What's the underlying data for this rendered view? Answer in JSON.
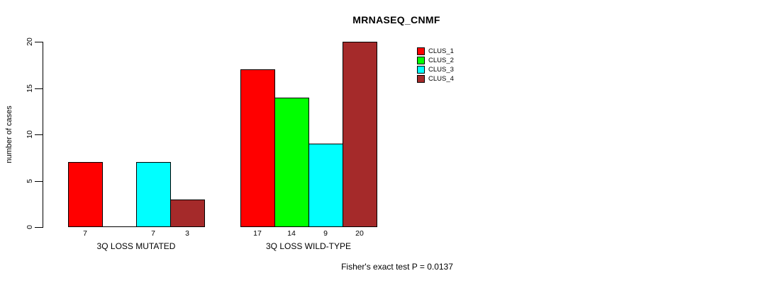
{
  "chart_data": {
    "type": "bar",
    "title": "MRNASEQ_CNMF",
    "ylabel": "number of cases",
    "xlabel": "",
    "ylim": [
      0,
      20
    ],
    "yticks": [
      0,
      5,
      10,
      15,
      20
    ],
    "grid": false,
    "legend_position": "top-right",
    "categories": [
      "3Q LOSS MUTATED",
      "3Q LOSS WILD-TYPE"
    ],
    "series": [
      {
        "name": "CLUS_1",
        "color": "#ff0000",
        "values": [
          7,
          17
        ]
      },
      {
        "name": "CLUS_2",
        "color": "#00ff00",
        "values": [
          0,
          14
        ]
      },
      {
        "name": "CLUS_3",
        "color": "#00ffff",
        "values": [
          7,
          9
        ]
      },
      {
        "name": "CLUS_4",
        "color": "#a52a2a",
        "values": [
          3,
          20
        ]
      }
    ],
    "bar_value_labels": [
      [
        "7",
        "",
        "7",
        "3"
      ],
      [
        "17",
        "14",
        "9",
        "20"
      ]
    ],
    "annotation": "Fisher's exact test P = 0.0137",
    "colors": {
      "axis": "#000000",
      "background": "#ffffff",
      "text": "#000000"
    }
  }
}
